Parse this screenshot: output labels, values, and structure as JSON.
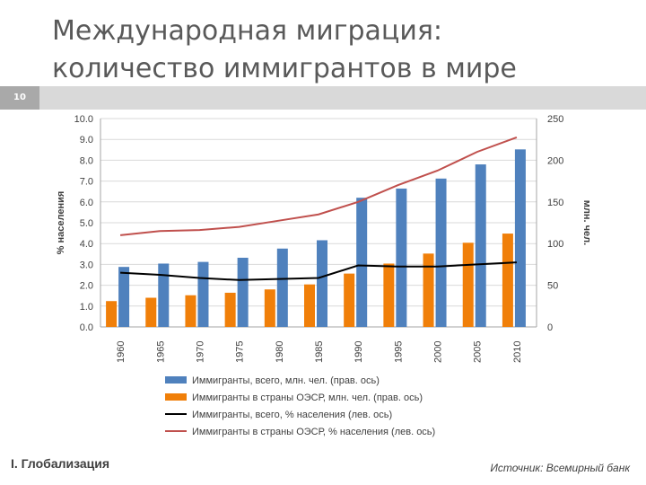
{
  "slide": {
    "number": "10",
    "title_line1": "Международная миграция:",
    "title_line2": "количество иммигрантов в мире",
    "footer_left": "I. Глобализация",
    "footer_right": "Источник: Всемирный банк"
  },
  "chart_data": {
    "type": "bar",
    "categories": [
      "1960",
      "1965",
      "1970",
      "1975",
      "1980",
      "1985",
      "1990",
      "1995",
      "2000",
      "2005",
      "2010"
    ],
    "ylabel_left": "% населения",
    "ylabel_right": "млн. чел.",
    "ylim_left": [
      0,
      10
    ],
    "ylim_right": [
      0,
      250
    ],
    "yticks_left": [
      "0.0",
      "1.0",
      "2.0",
      "3.0",
      "4.0",
      "5.0",
      "6.0",
      "7.0",
      "8.0",
      "9.0",
      "10.0"
    ],
    "yticks_right": [
      "0",
      "50",
      "100",
      "150",
      "200",
      "250"
    ],
    "grid": true,
    "legend_position": "bottom",
    "series": [
      {
        "name": "Иммигранты, всего, млн. чел. (прав. ось)",
        "type": "bar",
        "axis": "right",
        "color": "#4f81bd",
        "values": [
          72,
          76,
          78,
          83,
          94,
          104,
          155,
          166,
          178,
          195,
          213
        ]
      },
      {
        "name": "Иммигранты в страны ОЭСР, млн. чел. (прав. ось)",
        "type": "bar",
        "axis": "right",
        "color": "#f07f09",
        "values": [
          31,
          35,
          38,
          41,
          45,
          51,
          64,
          76,
          88,
          101,
          112
        ]
      },
      {
        "name": "Иммигранты, всего, % населения (лев. ось)",
        "type": "line",
        "axis": "left",
        "color": "#000000",
        "values": [
          2.6,
          2.5,
          2.35,
          2.25,
          2.3,
          2.35,
          2.95,
          2.9,
          2.9,
          3.0,
          3.1
        ]
      },
      {
        "name": "Иммигранты в страны ОЭСР, % населения (лев. ось)",
        "type": "line",
        "axis": "left",
        "color": "#c0504d",
        "values": [
          4.4,
          4.6,
          4.65,
          4.8,
          5.1,
          5.4,
          6.0,
          6.8,
          7.5,
          8.4,
          9.1
        ]
      }
    ]
  }
}
